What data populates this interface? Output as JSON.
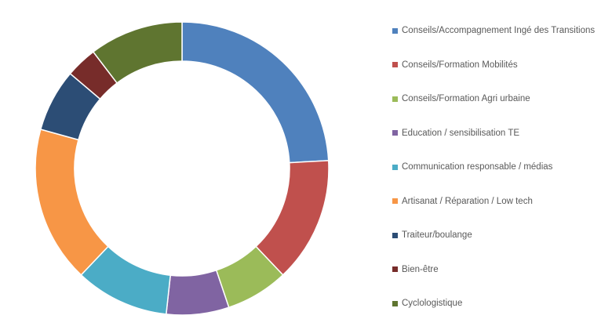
{
  "chart_data": {
    "type": "pie",
    "subtype": "donut",
    "title": "",
    "legend_position": "right",
    "start_angle_deg": 0,
    "direction": "clockwise",
    "donut_hole_ratio": 0.73,
    "grid": false,
    "total": 29,
    "categories": [
      "Conseils/Accompagnement Ingé des Transitions",
      "Conseils/Formation Mobilités",
      "Conseils/Formation Agri urbaine",
      "Education / sensibilisation TE",
      "Communication responsable / médias",
      "Artisanat / Réparation / Low tech",
      "Traiteur/boulange",
      "Bien-être",
      "Cyclologistique"
    ],
    "values": [
      7,
      4,
      2,
      2,
      3,
      5,
      2,
      1,
      3
    ],
    "percentages": [
      24.1,
      13.8,
      6.9,
      6.9,
      10.3,
      17.2,
      6.9,
      3.4,
      10.3
    ],
    "colors": [
      "#4F81BD",
      "#C0504D",
      "#9BBB59",
      "#8064A2",
      "#4BACC6",
      "#F79646",
      "#2C4D75",
      "#772C2A",
      "#5F7530"
    ],
    "separator_color": "#FFFFFF",
    "legend_text_color": "#595959"
  },
  "legend": {
    "items": [
      {
        "label": "Conseils/Accompagnement Ingé des Transitions",
        "color": "#4F81BD"
      },
      {
        "label": "Conseils/Formation Mobilités",
        "color": "#C0504D"
      },
      {
        "label": "Conseils/Formation Agri urbaine",
        "color": "#9BBB59"
      },
      {
        "label": "Education / sensibilisation TE",
        "color": "#8064A2"
      },
      {
        "label": "Communication responsable / médias",
        "color": "#4BACC6"
      },
      {
        "label": "Artisanat / Réparation / Low tech",
        "color": "#F79646"
      },
      {
        "label": "Traiteur/boulange",
        "color": "#2C4D75"
      },
      {
        "label": "Bien-être",
        "color": "#772C2A"
      },
      {
        "label": "Cyclologistique",
        "color": "#5F7530"
      }
    ]
  }
}
